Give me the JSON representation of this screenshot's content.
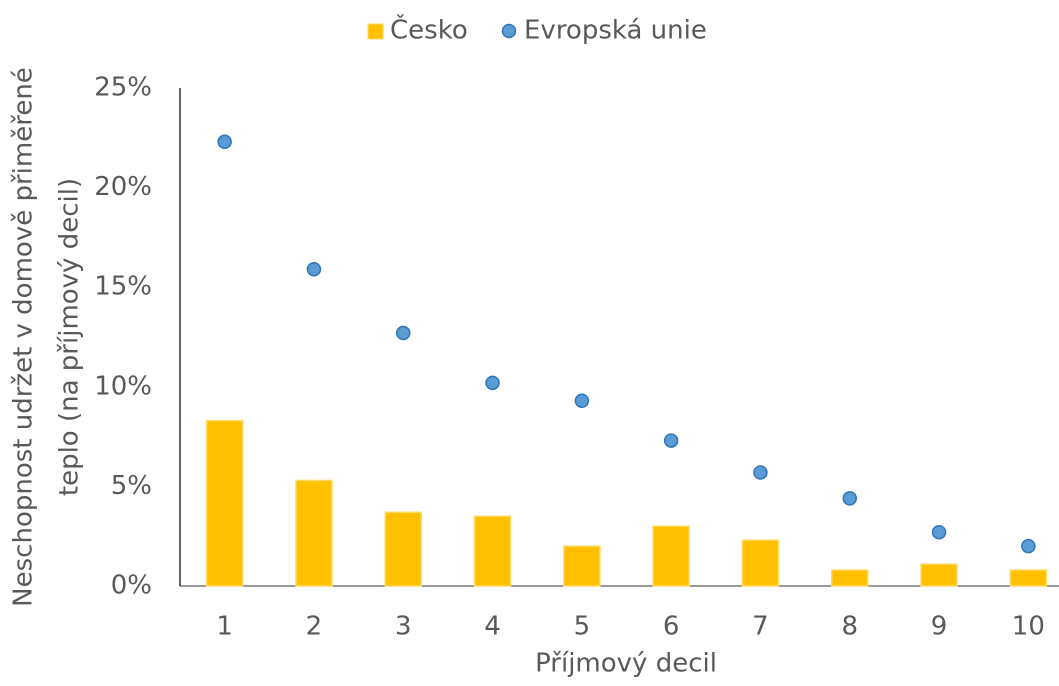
{
  "chart_data": {
    "type": "combo",
    "x_label": "Příjmový decil",
    "y_label": [
      "Neschopnost udržet v domově přiměřené",
      "teplo (na příjmový decil)"
    ],
    "categories": [
      "1",
      "2",
      "3",
      "4",
      "5",
      "6",
      "7",
      "8",
      "9",
      "10"
    ],
    "series": [
      {
        "name": "Česko",
        "type": "bar",
        "color": "#ffc000",
        "values": [
          8.3,
          5.3,
          3.7,
          3.5,
          2.0,
          3.0,
          2.3,
          0.8,
          1.1,
          0.8
        ]
      },
      {
        "name": "Evropská unie",
        "type": "scatter",
        "color": "#5b9bd5",
        "values": [
          22.3,
          15.9,
          12.7,
          10.2,
          9.3,
          7.3,
          5.7,
          4.4,
          2.7,
          2.0
        ]
      }
    ],
    "ylim": [
      0,
      25
    ],
    "yticks": [
      {
        "value": 0,
        "label": "0%"
      },
      {
        "value": 5,
        "label": "5%"
      },
      {
        "value": 10,
        "label": "10%"
      },
      {
        "value": 15,
        "label": "15%"
      },
      {
        "value": 20,
        "label": "20%"
      },
      {
        "value": 25,
        "label": "25%"
      }
    ],
    "grid": false,
    "legend": "top"
  }
}
